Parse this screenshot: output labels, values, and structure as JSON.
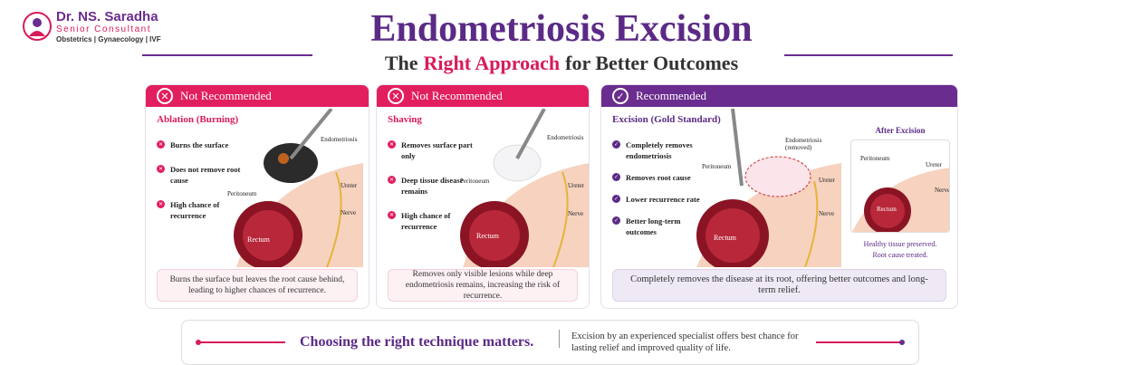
{
  "logo": {
    "name": "Dr. NS. Saradha",
    "role": "Senior Consultant",
    "specialty": "Obstetrics | Gynaecology | IVF"
  },
  "header": {
    "title": "Endometriosis Excision",
    "subtitle": {
      "before": "The",
      "highlight": "Right Approach",
      "after": "for Better Outcomes"
    }
  },
  "panels": [
    {
      "status": "Not Recommended",
      "method": "Ablation (Burning)",
      "points": [
        "Burns the surface",
        "Does not remove root cause",
        "High chance of recurrence"
      ],
      "labels": [
        "Endometriosis",
        "Peritoneum",
        "Ureter",
        "Nerve",
        "Rectum"
      ],
      "summary": "Burns the surface but leaves the root cause behind, leading to higher chances of recurrence."
    },
    {
      "status": "Not Recommended",
      "method": "Shaving",
      "points": [
        "Removes surface part only",
        "Deep tissue disease remains",
        "High chance of recurrence"
      ],
      "labels": [
        "Endometriosis",
        "Peritoneum",
        "Ureter",
        "Nerve",
        "Rectum"
      ],
      "summary": "Removes only visible lesions while deep endometriosis remains, increasing the risk of recurrence."
    },
    {
      "status": "Recommended",
      "method": "Excision (Gold Standard)",
      "points": [
        "Completely removes endometriosis",
        "Removes root cause",
        "Lower recurrence rate",
        "Better long-term outcomes"
      ],
      "labels": [
        "Endometriosis (removed)",
        "Peritoneum",
        "Ureter",
        "Nerve",
        "Rectum"
      ],
      "summary": "Completely removes the disease at its root, offering better outcomes and long-term relief."
    }
  ],
  "after": {
    "title": "After Excision",
    "labels": [
      "Peritoneum",
      "Ureter",
      "Nerve",
      "Rectum"
    ],
    "caption": [
      "Healthy tissue preserved.",
      "Root cause treated."
    ]
  },
  "footer": {
    "headline": "Choosing the right technique matters.",
    "text": "Excision by an experienced specialist offers best chance for lasting relief and improved quality of life."
  }
}
